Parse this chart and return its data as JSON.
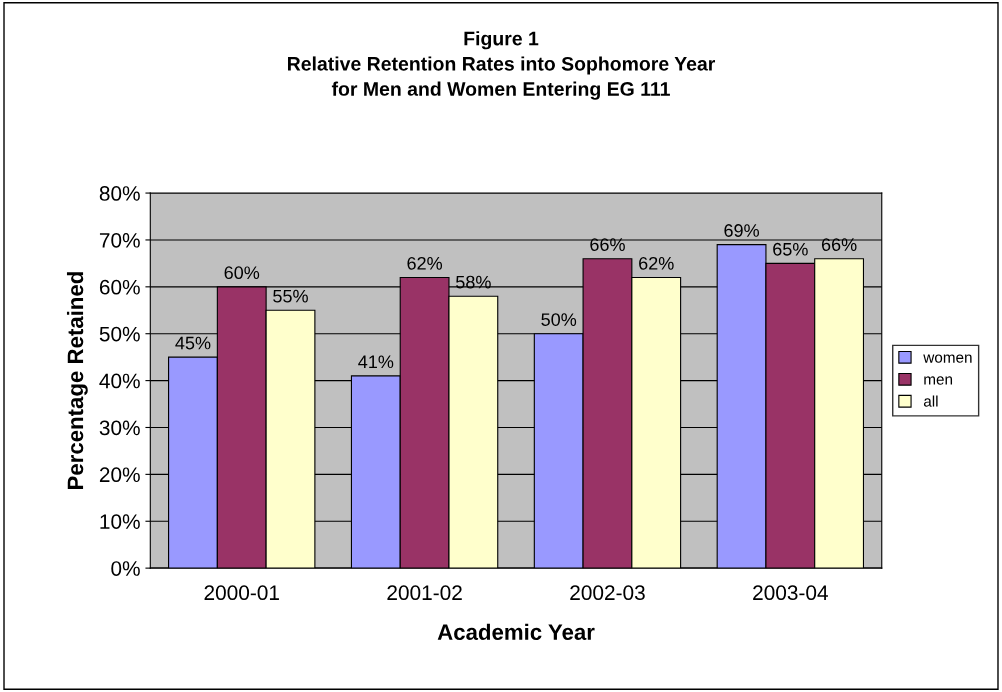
{
  "chart_data": {
    "type": "bar",
    "title": "Figure 1\nRelative Retention Rates into Sophomore Year\nfor Men and Women Entering EG 111",
    "xlabel": "Academic Year",
    "ylabel": "Percentage Retained",
    "categories": [
      "2000-01",
      "2001-02",
      "2002-03",
      "2003-04"
    ],
    "series": [
      {
        "name": "women",
        "color": "#9999ff",
        "values": [
          45,
          41,
          50,
          69
        ],
        "value_labels": [
          "45%",
          "41%",
          "50%",
          "69%"
        ]
      },
      {
        "name": "men",
        "color": "#993366",
        "values": [
          60,
          62,
          66,
          65
        ],
        "value_labels": [
          "60%",
          "62%",
          "66%",
          "65%"
        ]
      },
      {
        "name": "all",
        "color": "#ffffcc",
        "values": [
          55,
          58,
          62,
          66
        ],
        "value_labels": [
          "55%",
          "58%",
          "62%",
          "66%"
        ]
      }
    ],
    "ylim": [
      0,
      80
    ],
    "yticks": [
      {
        "value": 0,
        "label": "0%"
      },
      {
        "value": 10,
        "label": "10%"
      },
      {
        "value": 20,
        "label": "20%"
      },
      {
        "value": 30,
        "label": "30%"
      },
      {
        "value": 40,
        "label": "40%"
      },
      {
        "value": 50,
        "label": "50%"
      },
      {
        "value": 60,
        "label": "60%"
      },
      {
        "value": 70,
        "label": "70%"
      },
      {
        "value": 80,
        "label": "80%"
      }
    ],
    "grid": "y",
    "legend": "right"
  }
}
